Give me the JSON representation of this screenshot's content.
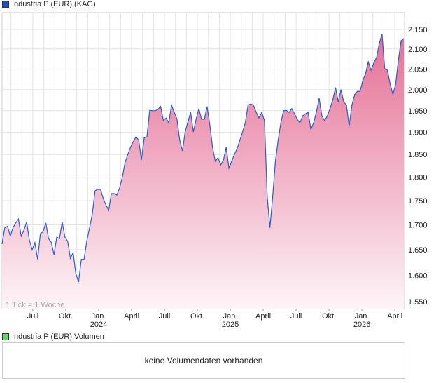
{
  "legend_price": {
    "label": "Industria P (EUR) (KAG)",
    "color": "#1f4fb4"
  },
  "legend_volume": {
    "label": "Industria P (EUR) Volumen",
    "color": "#6ccf6c"
  },
  "volume_message": "keine Volumendaten vorhanden",
  "tick_note": "1 Tick = 1 Woche",
  "colors": {
    "line": "#2a5bd0",
    "fill_top": "#e56f96",
    "fill_bottom": "#fdf4f7",
    "grid": "#e3e3e3"
  },
  "chart_data": {
    "type": "area",
    "title": "Industria P (EUR) (KAG)",
    "scale": "log",
    "ylim": [
      1.53,
      2.17
    ],
    "yticks": [
      "2.150",
      "2.100",
      "2.050",
      "2.000",
      "1.950",
      "1.900",
      "1.850",
      "1.800",
      "1.750",
      "1.700",
      "1.650",
      "1.600",
      "1.550"
    ],
    "xticks": [
      {
        "label": "Juli",
        "year": ""
      },
      {
        "label": "Okt.",
        "year": ""
      },
      {
        "label": "Jan.",
        "year": "2024"
      },
      {
        "label": "April",
        "year": ""
      },
      {
        "label": "Juli",
        "year": ""
      },
      {
        "label": "Okt.",
        "year": ""
      },
      {
        "label": "Jan.",
        "year": "2025"
      },
      {
        "label": "April",
        "year": ""
      },
      {
        "label": "Juli",
        "year": ""
      },
      {
        "label": "Okt.",
        "year": ""
      },
      {
        "label": "Jan.",
        "year": "2026"
      },
      {
        "label": "April",
        "year": ""
      }
    ],
    "values": [
      1.661,
      1.694,
      1.697,
      1.677,
      1.694,
      1.704,
      1.712,
      1.677,
      1.689,
      1.706,
      1.669,
      1.65,
      1.664,
      1.631,
      1.682,
      1.686,
      1.704,
      1.672,
      1.665,
      1.64,
      1.675,
      1.672,
      1.706,
      1.675,
      1.667,
      1.633,
      1.644,
      1.603,
      1.587,
      1.631,
      1.631,
      1.667,
      1.694,
      1.722,
      1.771,
      1.774,
      1.774,
      1.755,
      1.741,
      1.73,
      1.765,
      1.765,
      1.762,
      1.777,
      1.8,
      1.832,
      1.85,
      1.866,
      1.879,
      1.89,
      1.882,
      1.838,
      1.887,
      1.89,
      1.951,
      1.95,
      1.95,
      1.953,
      1.96,
      1.927,
      1.933,
      1.922,
      1.963,
      1.946,
      1.93,
      1.882,
      1.858,
      1.901,
      1.924,
      1.946,
      1.901,
      1.93,
      1.955,
      1.93,
      1.93,
      1.96,
      1.917,
      1.866,
      1.835,
      1.843,
      1.827,
      1.838,
      1.866,
      1.82,
      1.835,
      1.85,
      1.863,
      1.882,
      1.901,
      1.922,
      1.963,
      1.966,
      1.963,
      1.946,
      1.933,
      1.946,
      1.927,
      1.759,
      1.694,
      1.759,
      1.835,
      1.882,
      1.922,
      1.95,
      1.951,
      1.946,
      1.955,
      1.943,
      1.93,
      1.922,
      1.938,
      1.943,
      1.946,
      1.906,
      1.922,
      1.946,
      1.98,
      1.938,
      1.927,
      1.938,
      1.955,
      1.976,
      2.005,
      1.971,
      2.0,
      1.971,
      1.963,
      1.914,
      1.963,
      1.988,
      1.996,
      1.996,
      2.022,
      2.039,
      2.068,
      2.047,
      2.065,
      2.079,
      2.114,
      2.139,
      2.051,
      2.047,
      2.013,
      1.988,
      2.013,
      2.073,
      2.121,
      2.127
    ]
  }
}
